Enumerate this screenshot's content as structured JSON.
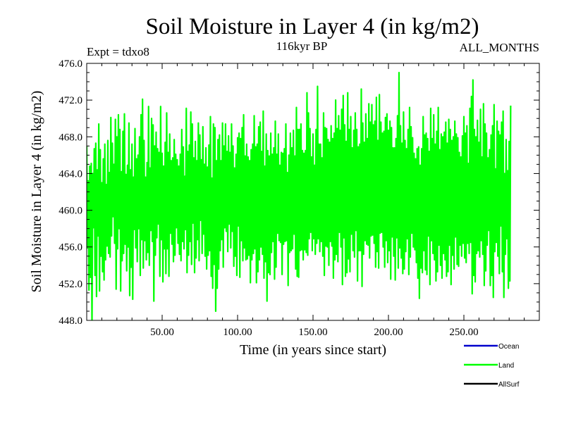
{
  "chart_data": {
    "type": "line",
    "title": "Soil Moisture in Layer 4 (in kg/m2)",
    "subtitle_left": "Expt = tdxo8",
    "subtitle_center": "116kyr BP",
    "subtitle_right": "ALL_MONTHS",
    "xlabel": "Time (in years since start)",
    "ylabel": "Soil Moisture in Layer 4 (in kg/m2)",
    "xlim": [
      0,
      300
    ],
    "ylim": [
      448.0,
      476.0
    ],
    "x_ticks": [
      50,
      100,
      150,
      200,
      250
    ],
    "x_tick_labels": [
      "50.00",
      "100.00",
      "150.00",
      "200.00",
      "250.00"
    ],
    "y_ticks": [
      448,
      452,
      456,
      460,
      464,
      468,
      472,
      476
    ],
    "y_tick_labels": [
      "448.0",
      "452.0",
      "456.0",
      "460.0",
      "464.0",
      "468.0",
      "472.0",
      "476.0"
    ],
    "grid": false,
    "legend_position": "bottom-right",
    "series": [
      {
        "name": "Land",
        "color": "#00ff00",
        "x_start": 0,
        "x_step": 0.5,
        "values": [
          467.0,
          455.9,
          463.2,
          451.3,
          464.8,
          452.7,
          465.1,
          447.8,
          464.0,
          458.1,
          466.7,
          452.9,
          467.3,
          450.6,
          464.4,
          457.2,
          469.4,
          451.2,
          466.6,
          455.0,
          463.0,
          453.3,
          465.6,
          452.4,
          467.2,
          454.6,
          462.8,
          456.1,
          467.6,
          455.3,
          464.1,
          454.9,
          470.1,
          457.2,
          467.3,
          459.3,
          465.0,
          456.4,
          469.9,
          451.4,
          468.0,
          455.8,
          470.4,
          458.0,
          468.8,
          451.2,
          464.2,
          454.5,
          468.6,
          455.3,
          470.5,
          456.3,
          463.9,
          453.4,
          464.9,
          456.0,
          469.5,
          450.7,
          464.4,
          453.8,
          467.2,
          450.3,
          463.6,
          457.9,
          468.9,
          455.9,
          465.6,
          454.4,
          466.0,
          458.0,
          468.0,
          452.9,
          470.4,
          456.8,
          472.1,
          453.7,
          467.6,
          456.7,
          463.6,
          454.6,
          465.2,
          455.4,
          471.3,
          454.0,
          464.6,
          457.8,
          470.0,
          456.6,
          469.3,
          450.1,
          467.0,
          455.1,
          468.5,
          457.0,
          466.7,
          458.5,
          466.3,
          452.8,
          471.3,
          456.8,
          466.2,
          452.2,
          464.8,
          455.8,
          467.4,
          453.1,
          470.6,
          455.8,
          466.3,
          452.8,
          468.3,
          457.5,
          465.4,
          456.3,
          465.7,
          454.4,
          467.7,
          455.1,
          466.1,
          458.1,
          465.5,
          456.4,
          464.8,
          455.2,
          466.1,
          454.5,
          468.8,
          456.6,
          466.9,
          455.8,
          463.7,
          457.9,
          471.1,
          453.2,
          466.4,
          455.1,
          467.1,
          456.6,
          470.7,
          454.1,
          469.4,
          458.6,
          465.7,
          453.2,
          467.5,
          454.8,
          465.4,
          456.8,
          469.5,
          454.5,
          468.2,
          458.9,
          465.5,
          455.3,
          469.1,
          457.4,
          465.0,
          455.0,
          466.8,
          453.6,
          464.7,
          455.1,
          467.1,
          455.6,
          470.2,
          452.8,
          463.5,
          451.5,
          469.4,
          454.1,
          469.0,
          449.0,
          465.4,
          451.5,
          467.7,
          453.6,
          468.2,
          455.6,
          465.4,
          456.8,
          469.5,
          453.8,
          467.0,
          458.1,
          469.4,
          457.7,
          466.4,
          455.5,
          468.1,
          458.5,
          466.3,
          455.9,
          469.4,
          457.7,
          467.0,
          453.9,
          464.6,
          455.0,
          466.1,
          452.9,
          467.9,
          458.3,
          468.4,
          452.7,
          467.8,
          456.7,
          469.0,
          454.5,
          470.4,
          455.9,
          465.9,
          454.6,
          467.2,
          454.7,
          465.8,
          455.1,
          465.4,
          452.1,
          466.6,
          454.6,
          467.2,
          455.3,
          470.3,
          455.8,
          466.9,
          452.1,
          467.2,
          453.3,
          469.1,
          454.6,
          469.6,
          456.0,
          466.4,
          455.2,
          470.8,
          452.6,
          464.8,
          454.4,
          468.3,
          450.1,
          466.5,
          453.2,
          465.9,
          453.0,
          468.4,
          455.4,
          466.1,
          456.6,
          466.8,
          452.5,
          469.7,
          453.8,
          466.1,
          457.5,
          468.3,
          456.7,
          464.9,
          456.5,
          466.3,
          453.0,
          466.2,
          456.3,
          466.7,
          456.6,
          469.4,
          456.7,
          464.1,
          451.8,
          466.0,
          455.4,
          468.4,
          455.6,
          466.8,
          455.8,
          468.7,
          457.4,
          465.9,
          453.6,
          471.2,
          452.8,
          468.8,
          452.7,
          468.8,
          455.6,
          469.4,
          455.7,
          466.5,
          454.6,
          466.2,
          455.7,
          466.5,
          455.4,
          472.8,
          455.1,
          470.6,
          456.9,
          468.9,
          457.6,
          465.8,
          455.6,
          468.3,
          456.9,
          464.9,
          455.2,
          468.8,
          456.4,
          473.5,
          456.9,
          467.2,
          455.5,
          467.2,
          456.6,
          465.7,
          455.0,
          470.6,
          452.9,
          469.0,
          456.1,
          468.9,
          456.0,
          467.7,
          454.0,
          467.4,
          456.6,
          469.2,
          456.1,
          467.8,
          452.6,
          468.4,
          454.6,
          472.0,
          455.2,
          468.9,
          454.4,
          470.3,
          457.6,
          468.7,
          456.0,
          471.0,
          451.9,
          472.5,
          457.0,
          469.3,
          452.8,
          467.5,
          453.2,
          472.8,
          454.7,
          468.8,
          453.3,
          470.2,
          457.4,
          466.8,
          455.6,
          468.7,
          454.9,
          470.6,
          457.8,
          468.8,
          452.3,
          466.9,
          455.6,
          467.2,
          455.6,
          473.2,
          451.7,
          469.5,
          455.2,
          467.4,
          456.7,
          470.5,
          456.3,
          467.8,
          456.2,
          471.6,
          454.8,
          469.6,
          457.2,
          471.5,
          457.3,
          469.3,
          456.4,
          469.7,
          453.8,
          472.3,
          455.5,
          467.6,
          453.7,
          472.6,
          457.5,
          469.6,
          457.6,
          468.4,
          456.0,
          468.6,
          453.8,
          470.1,
          456.7,
          470.5,
          454.3,
          468.7,
          455.6,
          469.7,
          452.5,
          469.0,
          457.1,
          466.8,
          455.0,
          466.8,
          452.4,
          467.8,
          457.0,
          470.3,
          453.7,
          475.0,
          455.9,
          469.2,
          454.8,
          467.3,
          453.1,
          470.7,
          453.6,
          467.6,
          455.5,
          466.7,
          456.9,
          468.8,
          453.0,
          471.2,
          454.9,
          469.1,
          457.5,
          467.9,
          456.0,
          466.2,
          455.7,
          465.6,
          454.3,
          466.7,
          452.6,
          466.9,
          450.4,
          464.9,
          453.7,
          466.7,
          453.2,
          470.2,
          455.6,
          468.2,
          453.5,
          468.4,
          453.0,
          467.8,
          457.2,
          466.4,
          451.9,
          471.1,
          456.7,
          467.8,
          455.3,
          470.4,
          454.6,
          467.2,
          452.3,
          468.6,
          453.3,
          471.2,
          456.2,
          466.6,
          454.0,
          468.3,
          452.6,
          468.0,
          455.3,
          468.5,
          454.6,
          469.6,
          452.8,
          467.3,
          453.3,
          469.9,
          456.2,
          468.8,
          451.9,
          467.6,
          455.1,
          468.0,
          453.6,
          469.7,
          457.1,
          468.3,
          454.1,
          467.9,
          453.9,
          466.3,
          456.2,
          465.8,
          455.0,
          468.1,
          456.4,
          470.2,
          454.8,
          468.4,
          454.3,
          469.2,
          456.4,
          465.1,
          455.3,
          471.1,
          456.5,
          472.4,
          450.9,
          474.2,
          452.9,
          468.8,
          452.2,
          468.0,
          455.3,
          469.8,
          455.6,
          467.4,
          454.9,
          471.0,
          456.7,
          465.8,
          455.2,
          471.6,
          451.8,
          469.4,
          453.4,
          468.4,
          456.2,
          465.7,
          457.8,
          466.6,
          451.8,
          468.2,
          452.9,
          469.2,
          450.5,
          471.5,
          455.5,
          464.5,
          456.5,
          469.7,
          455.0,
          468.6,
          453.1,
          468.2,
          458.3,
          469.6,
          453.3,
          470.8,
          450.5,
          464.0,
          455.2,
          467.7,
          456.9,
          464.3,
          451.5,
          467.5,
          452.3,
          471.4
        ]
      },
      {
        "name": "Ocean",
        "color": "#0000cc",
        "values": []
      },
      {
        "name": "AllSurf",
        "color": "#000000",
        "values": []
      }
    ]
  }
}
